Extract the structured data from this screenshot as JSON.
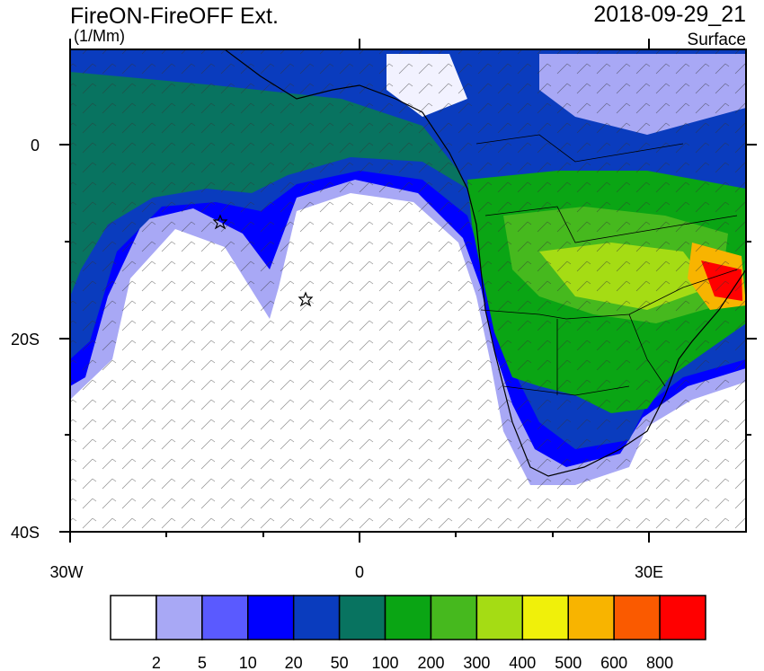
{
  "header": {
    "title": "FireON-FireOFF Ext.",
    "units": "(1/Mm)",
    "datetime": "2018-09-29_21",
    "level": "Surface"
  },
  "axes": {
    "y_labels": [
      "0",
      "20S",
      "40S"
    ],
    "x_labels": [
      "30W",
      "0",
      "30E"
    ]
  },
  "colorbar": {
    "colors": [
      "#ffffff",
      "#a8a8f5",
      "#5a5aff",
      "#0000ff",
      "#0a3cbe",
      "#087360",
      "#0aa514",
      "#46b91e",
      "#a5dc14",
      "#f0f00a",
      "#f8b400",
      "#fa5a00",
      "#ff0000"
    ],
    "labels": [
      2,
      5,
      10,
      20,
      50,
      100,
      200,
      300,
      400,
      500,
      600,
      800
    ]
  }
}
